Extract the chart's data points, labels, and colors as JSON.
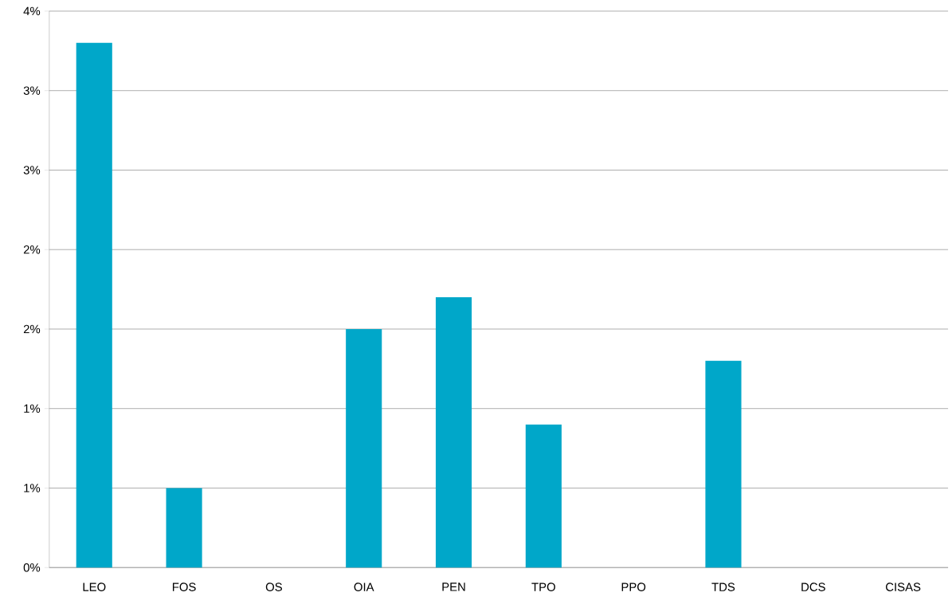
{
  "chart_data": {
    "type": "bar",
    "categories": [
      "LEO",
      "FOS",
      "OS",
      "OIA",
      "PEN",
      "TPO",
      "PPO",
      "TDS",
      "DCS",
      "CISAS"
    ],
    "values": [
      3.3,
      0.5,
      0,
      1.5,
      1.7,
      0.9,
      0,
      1.3,
      0,
      0
    ],
    "color": "#00a7c9",
    "ylim": [
      0,
      3.5
    ],
    "yticks": [
      {
        "value": 0,
        "label": "0%"
      },
      {
        "value": 0.5,
        "label": "1%"
      },
      {
        "value": 1,
        "label": "1%"
      },
      {
        "value": 1.5,
        "label": "2%"
      },
      {
        "value": 2,
        "label": "2%"
      },
      {
        "value": 2.5,
        "label": "3%"
      },
      {
        "value": 3,
        "label": "3%"
      },
      {
        "value": 3.5,
        "label": "4%"
      }
    ],
    "grid": "y"
  }
}
